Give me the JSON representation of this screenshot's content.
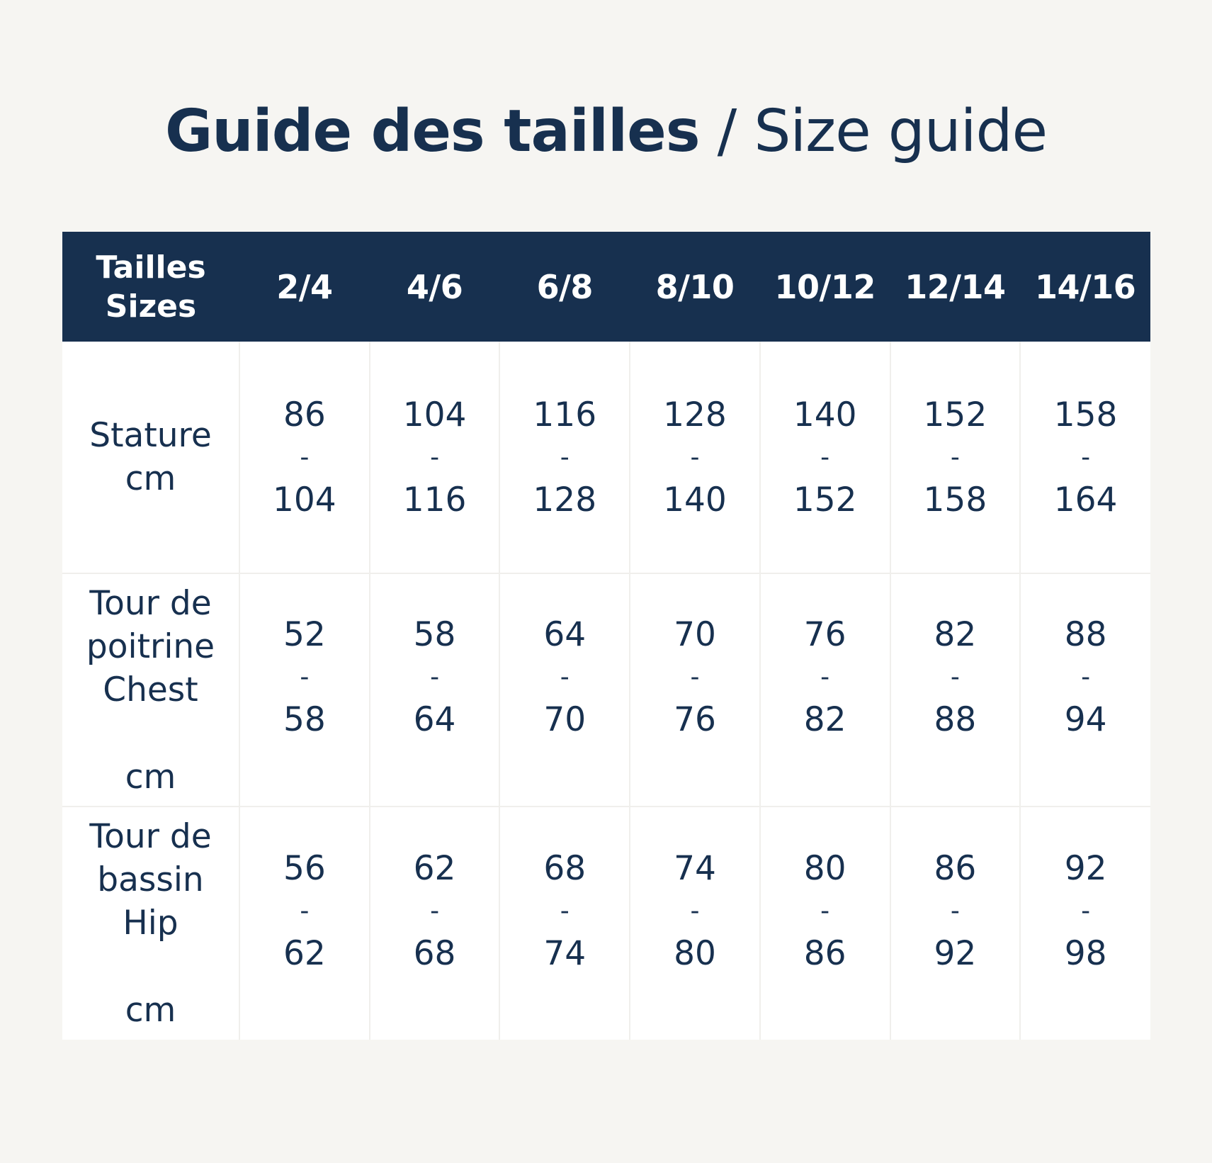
{
  "title": {
    "bold": "Guide des tailles",
    "light": " / Size guide"
  },
  "table": {
    "header": {
      "corner_line1": "Tailles",
      "corner_line2": "Sizes",
      "sizes": [
        "2/4",
        "4/6",
        "6/8",
        "8/10",
        "10/12",
        "12/14",
        "14/16"
      ]
    },
    "rows": [
      {
        "label_lines": [
          "Stature"
        ],
        "unit": "cm",
        "values": [
          {
            "min": "86",
            "sep": "-",
            "max": "104"
          },
          {
            "min": "104",
            "sep": "-",
            "max": "116"
          },
          {
            "min": "116",
            "sep": "-",
            "max": "128"
          },
          {
            "min": "128",
            "sep": "-",
            "max": "140"
          },
          {
            "min": "140",
            "sep": "-",
            "max": "152"
          },
          {
            "min": "152",
            "sep": "-",
            "max": "158"
          },
          {
            "min": "158",
            "sep": "-",
            "max": "164"
          }
        ]
      },
      {
        "label_lines": [
          "Tour de",
          "poitrine",
          "Chest"
        ],
        "unit": "cm",
        "values": [
          {
            "min": "52",
            "sep": "-",
            "max": "58"
          },
          {
            "min": "58",
            "sep": "-",
            "max": "64"
          },
          {
            "min": "64",
            "sep": "-",
            "max": "70"
          },
          {
            "min": "70",
            "sep": "-",
            "max": "76"
          },
          {
            "min": "76",
            "sep": "-",
            "max": "82"
          },
          {
            "min": "82",
            "sep": "-",
            "max": "88"
          },
          {
            "min": "88",
            "sep": "-",
            "max": "94"
          }
        ]
      },
      {
        "label_lines": [
          "Tour de",
          "bassin",
          "Hip"
        ],
        "unit": "cm",
        "values": [
          {
            "min": "56",
            "sep": "-",
            "max": "62"
          },
          {
            "min": "62",
            "sep": "-",
            "max": "68"
          },
          {
            "min": "68",
            "sep": "-",
            "max": "74"
          },
          {
            "min": "74",
            "sep": "-",
            "max": "80"
          },
          {
            "min": "80",
            "sep": "-",
            "max": "86"
          },
          {
            "min": "86",
            "sep": "-",
            "max": "92"
          },
          {
            "min": "92",
            "sep": "-",
            "max": "98"
          }
        ]
      }
    ]
  },
  "colors": {
    "background": "#f6f5f2",
    "header_bg": "#17304f",
    "header_text": "#ffffff",
    "body_text": "#17304f",
    "cell_bg": "#ffffff",
    "grid_line": "#f0efec"
  }
}
